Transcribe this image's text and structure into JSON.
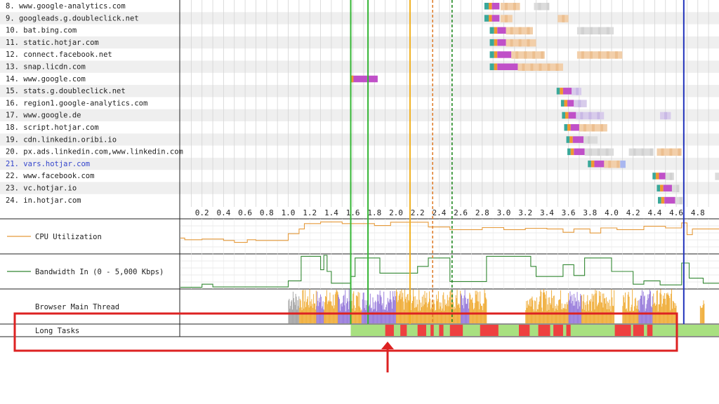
{
  "chart_data": {
    "type": "waterfall",
    "x_ticks": [
      0.2,
      0.4,
      0.6,
      0.8,
      1.0,
      1.2,
      1.4,
      1.6,
      1.8,
      2.0,
      2.2,
      2.4,
      2.6,
      2.8,
      3.0,
      3.2,
      3.4,
      3.6,
      3.8,
      4.0,
      4.2,
      4.4,
      4.6,
      4.8
    ],
    "xlim": [
      0.0,
      5.05
    ],
    "requests": [
      {
        "label": "8. www.google-analytics.com",
        "start": 2.82,
        "segs": [
          0.04,
          0.03,
          0.07
        ],
        "ttfb": 0.0,
        "download": [
          [
            2.97,
            3.15,
            "orange"
          ],
          [
            3.28,
            3.42,
            "gray"
          ]
        ]
      },
      {
        "label": "9. googleads.g.doubleclick.net",
        "start": 2.82,
        "segs": [
          0.04,
          0.03,
          0.07
        ],
        "ttfb": 0.0,
        "download": [
          [
            2.97,
            3.08,
            "orange"
          ],
          [
            3.5,
            3.6,
            "orange"
          ]
        ]
      },
      {
        "label": "10. bat.bing.com",
        "start": 2.87,
        "segs": [
          0.04,
          0.03,
          0.08
        ],
        "ttfb": 0.0,
        "download": [
          [
            3.02,
            3.27,
            "orange"
          ],
          [
            3.68,
            4.02,
            "gray"
          ]
        ]
      },
      {
        "label": "11. static.hotjar.com",
        "start": 2.87,
        "segs": [
          0.04,
          0.03,
          0.08
        ],
        "ttfb": 0.0,
        "download": [
          [
            3.02,
            3.3,
            "orange"
          ]
        ]
      },
      {
        "label": "12. connect.facebook.net",
        "start": 2.87,
        "segs": [
          0.04,
          0.03,
          0.13
        ],
        "ttfb": 0.0,
        "download": [
          [
            3.07,
            3.38,
            "orange"
          ],
          [
            3.68,
            4.1,
            "orange"
          ]
        ]
      },
      {
        "label": "13. snap.licdn.com",
        "start": 2.87,
        "segs": [
          0.04,
          0.03,
          0.19
        ],
        "ttfb": 0.0,
        "download": [
          [
            3.13,
            3.55,
            "orange"
          ]
        ]
      },
      {
        "label": "14. www.google.com",
        "start": 1.58,
        "segs": [
          0.02,
          0.0,
          0.13
        ],
        "ttfb": 0.1,
        "download": []
      },
      {
        "label": "15. stats.g.doubleclick.net",
        "start": 3.49,
        "segs": [
          0.03,
          0.03,
          0.0
        ],
        "ttfb": 0.08,
        "download": [
          [
            3.63,
            3.72,
            "purple"
          ]
        ]
      },
      {
        "label": "16. region1.google-analytics.com",
        "start": 3.53,
        "segs": [
          0.03,
          0.03,
          0.0
        ],
        "ttfb": 0.06,
        "download": [
          [
            3.65,
            3.77,
            "purple"
          ]
        ]
      },
      {
        "label": "17. www.google.de",
        "start": 3.54,
        "segs": [
          0.03,
          0.03,
          0.0
        ],
        "ttfb": 0.07,
        "download": [
          [
            3.67,
            3.93,
            "purple"
          ],
          [
            4.45,
            4.55,
            "purple"
          ]
        ]
      },
      {
        "label": "18. script.hotjar.com",
        "start": 3.56,
        "segs": [
          0.03,
          0.03,
          0.0
        ],
        "ttfb": 0.08,
        "download": [
          [
            3.7,
            3.96,
            "orange"
          ]
        ]
      },
      {
        "label": "19. cdn.linkedin.oribi.io",
        "start": 3.58,
        "segs": [
          0.03,
          0.03,
          0.0
        ],
        "ttfb": 0.1,
        "download": [
          [
            3.74,
            3.87,
            "gray"
          ]
        ]
      },
      {
        "label": "20. px.ads.linkedin.com,www.linkedin.com",
        "start": 3.59,
        "segs": [
          0.03,
          0.03,
          0.0
        ],
        "ttfb": 0.1,
        "download": [
          [
            3.75,
            4.02,
            "gray"
          ],
          [
            4.16,
            4.39,
            "gray"
          ],
          [
            4.42,
            4.65,
            "orange"
          ]
        ]
      },
      {
        "label": "21. vars.hotjar.com",
        "start": 3.78,
        "segs": [
          0.03,
          0.03,
          0.0
        ],
        "ttfb": 0.12,
        "download": [
          [
            3.93,
            4.08,
            "orange"
          ],
          [
            4.08,
            4.13,
            "blue"
          ]
        ],
        "highlight": true
      },
      {
        "label": "22. www.facebook.com",
        "start": 4.38,
        "segs": [
          0.03,
          0.03,
          0.0
        ],
        "ttfb": 0.06,
        "download": [
          [
            4.5,
            4.58,
            "gray"
          ],
          [
            4.96,
            5.05,
            "gray"
          ]
        ]
      },
      {
        "label": "23. vc.hotjar.io",
        "start": 4.42,
        "segs": [
          0.03,
          0.03,
          0.0
        ],
        "ttfb": 0.08,
        "download": [
          [
            4.56,
            4.63,
            "gray"
          ]
        ]
      },
      {
        "label": "24. in.hotjar.com",
        "start": 4.43,
        "segs": [
          0.03,
          0.03,
          0.0
        ],
        "ttfb": 0.1,
        "download": [
          [
            4.59,
            4.66,
            "gray"
          ]
        ]
      }
    ],
    "markers": [
      {
        "x": 1.58,
        "color": "#35b535",
        "style": "solid"
      },
      {
        "x": 1.74,
        "color": "#35b535",
        "style": "solid"
      },
      {
        "x": 2.13,
        "color": "#f0b020",
        "style": "solid"
      },
      {
        "x": 2.34,
        "color": "#e08030",
        "style": "dashed"
      },
      {
        "x": 2.52,
        "color": "#208820",
        "style": "dashed"
      },
      {
        "x": 4.67,
        "color": "#2233bb",
        "style": "solid"
      }
    ],
    "cpu": {
      "name": "CPU Utilization",
      "color": "#e59a3b",
      "points": [
        [
          0.0,
          45
        ],
        [
          0.04,
          45
        ],
        [
          0.04,
          40
        ],
        [
          0.2,
          40
        ],
        [
          0.2,
          42
        ],
        [
          0.4,
          42
        ],
        [
          0.4,
          38
        ],
        [
          0.5,
          38
        ],
        [
          0.5,
          32
        ],
        [
          0.62,
          32
        ],
        [
          0.62,
          40
        ],
        [
          0.7,
          40
        ],
        [
          0.7,
          38
        ],
        [
          1.0,
          38
        ],
        [
          1.0,
          58
        ],
        [
          1.1,
          58
        ],
        [
          1.1,
          72
        ],
        [
          1.15,
          72
        ],
        [
          1.15,
          88
        ],
        [
          1.3,
          88
        ],
        [
          1.3,
          93
        ],
        [
          1.5,
          93
        ],
        [
          1.5,
          88
        ],
        [
          1.8,
          88
        ],
        [
          1.8,
          82
        ],
        [
          1.95,
          82
        ],
        [
          1.95,
          92
        ],
        [
          2.3,
          92
        ],
        [
          2.3,
          78
        ],
        [
          2.5,
          78
        ],
        [
          2.5,
          70
        ],
        [
          2.8,
          70
        ],
        [
          2.8,
          76
        ],
        [
          3.0,
          76
        ],
        [
          3.0,
          70
        ],
        [
          3.2,
          70
        ],
        [
          3.2,
          74
        ],
        [
          3.4,
          74
        ],
        [
          3.4,
          72
        ],
        [
          3.55,
          72
        ],
        [
          3.55,
          62
        ],
        [
          3.65,
          62
        ],
        [
          3.65,
          72
        ],
        [
          3.8,
          72
        ],
        [
          3.8,
          60
        ],
        [
          3.9,
          60
        ],
        [
          3.9,
          75
        ],
        [
          4.05,
          75
        ],
        [
          4.05,
          70
        ],
        [
          4.3,
          70
        ],
        [
          4.3,
          80
        ],
        [
          4.5,
          80
        ],
        [
          4.5,
          75
        ],
        [
          4.65,
          75
        ],
        [
          4.65,
          90
        ],
        [
          4.7,
          90
        ],
        [
          4.7,
          55
        ],
        [
          4.75,
          55
        ],
        [
          4.75,
          72
        ],
        [
          5.05,
          72
        ]
      ]
    },
    "bandwidth": {
      "name": "Bandwidth In (0 - 5,000 Kbps)",
      "color": "#338833",
      "points": [
        [
          0.0,
          3
        ],
        [
          0.2,
          3
        ],
        [
          0.2,
          12
        ],
        [
          0.3,
          12
        ],
        [
          0.3,
          4
        ],
        [
          1.0,
          4
        ],
        [
          1.0,
          22
        ],
        [
          1.12,
          22
        ],
        [
          1.12,
          95
        ],
        [
          1.3,
          95
        ],
        [
          1.3,
          55
        ],
        [
          1.33,
          55
        ],
        [
          1.33,
          98
        ],
        [
          1.36,
          98
        ],
        [
          1.36,
          50
        ],
        [
          1.4,
          50
        ],
        [
          1.4,
          15
        ],
        [
          1.58,
          15
        ],
        [
          1.58,
          35
        ],
        [
          1.62,
          35
        ],
        [
          1.62,
          90
        ],
        [
          1.85,
          90
        ],
        [
          1.85,
          45
        ],
        [
          2.2,
          45
        ],
        [
          2.2,
          65
        ],
        [
          2.3,
          65
        ],
        [
          2.3,
          90
        ],
        [
          2.5,
          90
        ],
        [
          2.5,
          20
        ],
        [
          2.84,
          20
        ],
        [
          2.84,
          95
        ],
        [
          3.25,
          95
        ],
        [
          3.25,
          65
        ],
        [
          3.3,
          65
        ],
        [
          3.3,
          35
        ],
        [
          3.55,
          35
        ],
        [
          3.55,
          70
        ],
        [
          3.65,
          70
        ],
        [
          3.65,
          38
        ],
        [
          3.75,
          38
        ],
        [
          3.75,
          90
        ],
        [
          4.0,
          90
        ],
        [
          4.0,
          50
        ],
        [
          4.2,
          50
        ],
        [
          4.2,
          12
        ],
        [
          4.3,
          12
        ],
        [
          4.3,
          22
        ],
        [
          4.45,
          22
        ],
        [
          4.45,
          10
        ],
        [
          4.65,
          10
        ],
        [
          4.65,
          75
        ],
        [
          4.72,
          75
        ],
        [
          4.72,
          30
        ],
        [
          4.85,
          30
        ],
        [
          4.85,
          15
        ],
        [
          5.05,
          15
        ]
      ]
    },
    "main_thread": {
      "name": "Browser Main Thread",
      "blocks": [
        {
          "from": 1.0,
          "to": 1.1,
          "color": "#a8a8a8"
        },
        {
          "from": 1.1,
          "to": 1.26,
          "color": "#f0b040"
        },
        {
          "from": 1.26,
          "to": 1.33,
          "color": "#9b7fdc"
        },
        {
          "from": 1.33,
          "to": 1.46,
          "color": "#f0b040"
        },
        {
          "from": 1.46,
          "to": 1.58,
          "color": "#9b7fdc"
        },
        {
          "from": 1.58,
          "to": 1.68,
          "color": "#f0b040"
        },
        {
          "from": 1.68,
          "to": 2.0,
          "color": "#9b7fdc"
        },
        {
          "from": 2.0,
          "to": 2.6,
          "color": "#f0b040"
        },
        {
          "from": 2.6,
          "to": 2.68,
          "color": "#9b7fdc"
        },
        {
          "from": 2.68,
          "to": 2.84,
          "color": "#f0b040"
        },
        {
          "from": 3.2,
          "to": 3.6,
          "color": "#f0b040"
        },
        {
          "from": 3.6,
          "to": 3.72,
          "color": "#9b7fdc"
        },
        {
          "from": 3.72,
          "to": 4.02,
          "color": "#f0b040"
        },
        {
          "from": 4.1,
          "to": 4.25,
          "color": "#f0b040"
        },
        {
          "from": 4.25,
          "to": 4.38,
          "color": "#9b7fdc"
        },
        {
          "from": 4.38,
          "to": 4.6,
          "color": "#f0b040"
        },
        {
          "from": 4.82,
          "to": 4.86,
          "color": "#f0b040"
        }
      ]
    },
    "long_tasks": {
      "name": "Long Tasks",
      "interactive_from": 1.58,
      "interactive_color": "#a8e080",
      "tasks": [
        [
          1.9,
          1.98
        ],
        [
          2.04,
          2.1
        ],
        [
          2.2,
          2.28
        ],
        [
          2.32,
          2.35
        ],
        [
          2.4,
          2.44
        ],
        [
          2.5,
          2.62
        ],
        [
          2.78,
          2.95
        ],
        [
          3.14,
          3.24
        ],
        [
          3.32,
          3.43
        ],
        [
          3.46,
          3.55
        ],
        [
          3.58,
          3.62
        ],
        [
          4.03,
          4.18
        ],
        [
          4.2,
          4.3
        ],
        [
          4.33,
          4.38
        ]
      ],
      "task_color": "#ee4040"
    }
  }
}
